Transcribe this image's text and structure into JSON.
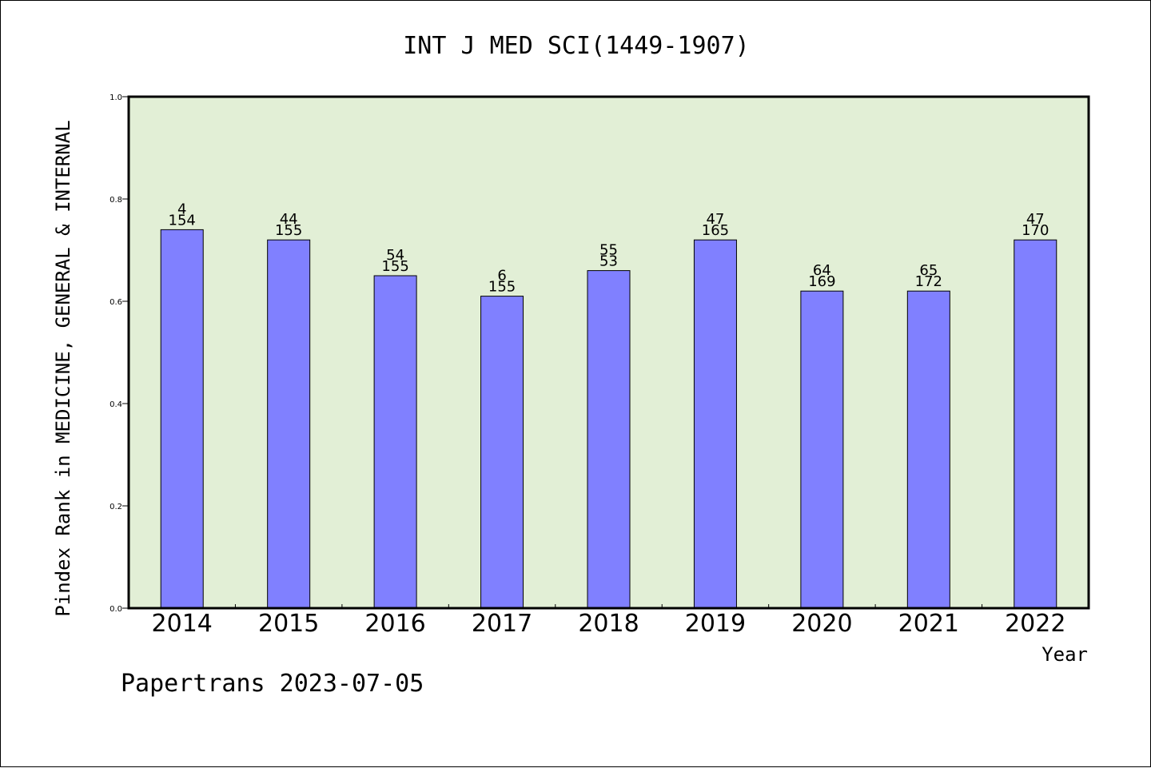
{
  "footer": "Papertrans 2023-07-05",
  "chart_data": {
    "type": "bar",
    "title": "INT J MED SCI(1449-1907)",
    "xlabel": "Year",
    "ylabel": "Pindex Rank in MEDICINE, GENERAL & INTERNAL",
    "ylim": [
      0,
      1.0
    ],
    "yticks": [
      "0.0",
      "0.2",
      "0.4",
      "0.6",
      "0.8",
      "1.0"
    ],
    "grid": false,
    "categories": [
      "2014",
      "2015",
      "2016",
      "2017",
      "2018",
      "2019",
      "2020",
      "2021",
      "2022"
    ],
    "values": [
      0.74,
      0.72,
      0.65,
      0.61,
      0.66,
      0.72,
      0.62,
      0.62,
      0.72
    ],
    "labels_top": [
      "4",
      "44",
      "54",
      "6",
      "55",
      "47",
      "64",
      "65",
      "47"
    ],
    "labels_bottom": [
      "154",
      "155",
      "155",
      "155",
      "53",
      "165",
      "169",
      "172",
      "170"
    ],
    "colors": {
      "plot_bg": "#e2efd6",
      "bar": "#8080ff",
      "bar_edge": "#000000"
    }
  }
}
